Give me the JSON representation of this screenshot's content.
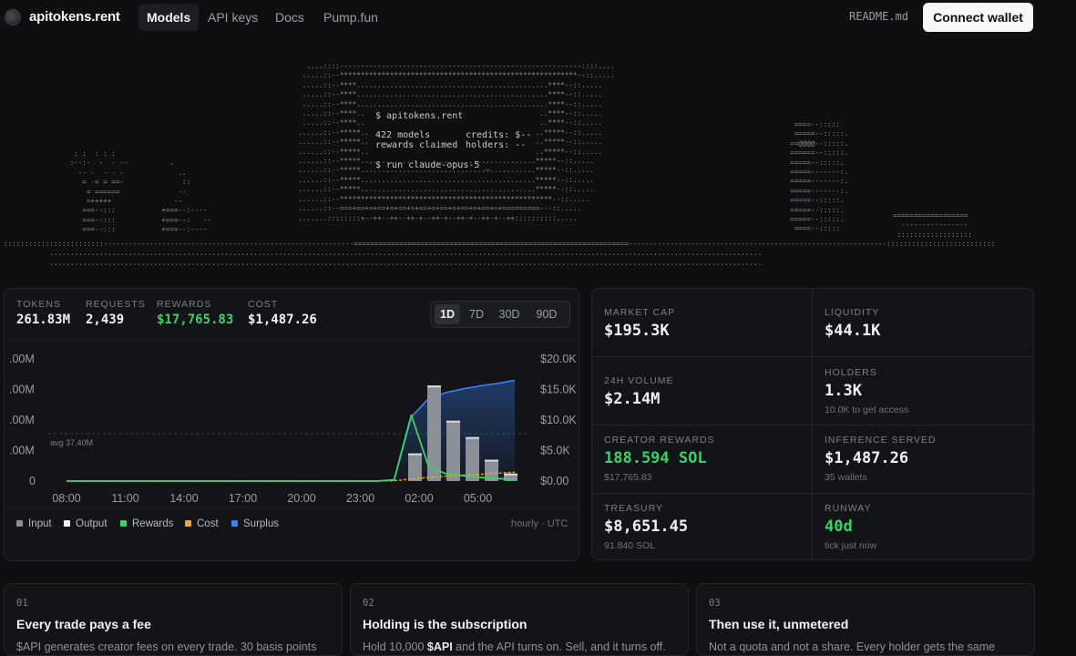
{
  "nav": {
    "brand": "apitokens.rent",
    "links": [
      "Models",
      "API keys",
      "Docs",
      "Pump.fun"
    ],
    "readme": "README.md",
    "connect": "Connect wallet"
  },
  "terminal": {
    "line1": "$ apitokens.rent",
    "models": "422 models",
    "credits": "credits: $--",
    "rewards_claimed": "rewards claimed",
    "holders": "holders: --",
    "line_run": "$ run claude-opus-5 _"
  },
  "stats": {
    "tokens_label": "TOKENS",
    "tokens": "261.83M",
    "requests_label": "REQUESTS",
    "requests": "2,439",
    "rewards_label": "REWARDS",
    "rewards": "$17,765.83",
    "cost_label": "COST",
    "cost": "$1,487.26"
  },
  "ranges": [
    "1D",
    "7D",
    "30D",
    "90D"
  ],
  "legend": [
    {
      "label": "Input",
      "color": "#8a8f98"
    },
    {
      "label": "Output",
      "color": "#f2f3f5"
    },
    {
      "label": "Rewards",
      "color": "#3fd167"
    },
    {
      "label": "Cost",
      "color": "#f5a623"
    },
    {
      "label": "Surplus",
      "color": "#3b82f6"
    }
  ],
  "hourly": "hourly · UTC",
  "chart_data": {
    "type": "bar",
    "x_ticks": [
      "08:00",
      "11:00",
      "14:00",
      "17:00",
      "20:00",
      "23:00",
      "02:00",
      "05:00"
    ],
    "y_left_ticks": [
      ".00M",
      ".00M",
      ".00M",
      ".00M",
      "0"
    ],
    "y_right_ticks": [
      "$20.0K",
      "$15.0K",
      "$10.0K",
      "$5.0K",
      "$0.00"
    ],
    "avg_label": "avg 37.40M",
    "series": [
      {
        "name": "Input",
        "type": "bar",
        "values": [
          0,
          0,
          0,
          0,
          0,
          0,
          0,
          0,
          0,
          0,
          0,
          0,
          0,
          0,
          0,
          0,
          0,
          0,
          0,
          0,
          0.22,
          0.76,
          0.48,
          0.35,
          0.17,
          0.06
        ]
      },
      {
        "name": "Rewards",
        "type": "line",
        "values": [
          0,
          0,
          0,
          0,
          0,
          0,
          0,
          0,
          0,
          0,
          0,
          0,
          0,
          0,
          0,
          0,
          0,
          0,
          0,
          0.2,
          10.8,
          2.4,
          1.2,
          0.9,
          0.6,
          0.4,
          0.3
        ]
      },
      {
        "name": "Cost",
        "type": "line",
        "values": [
          0,
          0,
          0,
          0,
          0,
          0,
          0,
          0,
          0,
          0,
          0,
          0,
          0,
          0,
          0,
          0,
          0,
          0,
          0,
          0.05,
          0.35,
          0.6,
          0.8,
          0.95,
          1.1,
          1.3,
          1.45
        ]
      },
      {
        "name": "Surplus",
        "type": "area",
        "values": [
          0,
          0,
          0,
          0,
          0,
          0,
          0,
          0,
          0,
          0,
          0,
          0,
          0,
          0,
          0,
          0,
          0,
          0,
          0,
          0.15,
          10.5,
          13.5,
          14.5,
          15.1,
          15.6,
          16.0,
          16.5
        ]
      }
    ]
  },
  "metrics": {
    "market_cap_label": "MARKET CAP",
    "market_cap": "$195.3K",
    "liquidity_label": "LIQUIDITY",
    "liquidity": "$44.1K",
    "volume_label": "24H VOLUME",
    "volume": "$2.14M",
    "holders_label": "HOLDERS",
    "holders": "1.3K",
    "holders_sub": "10.0K to get access",
    "creator_label": "CREATOR REWARDS",
    "creator": "188.594 SOL",
    "creator_sub": "$17,765.83",
    "inference_label": "INFERENCE SERVED",
    "inference": "$1,487.26",
    "inference_sub": "35 wallets",
    "treasury_label": "TREASURY",
    "treasury": "$8,651.45",
    "treasury_sub": "91.840 SOL",
    "runway_label": "RUNWAY",
    "runway": "40d",
    "runway_sub": "tick just now"
  },
  "steps": [
    {
      "num": "01",
      "title": "Every trade pays a fee",
      "body": "$API generates creator fees on every trade. 30 basis points"
    },
    {
      "num": "02",
      "title": "Holding is the subscription",
      "body_pre": "Hold 10,000 ",
      "body_bold": "$API",
      "body_post": " and the API turns on. Sell, and it turns off."
    },
    {
      "num": "03",
      "title": "Then use it, unmetered",
      "body": "Not a quota and not a share. Every holder gets the same"
    }
  ]
}
